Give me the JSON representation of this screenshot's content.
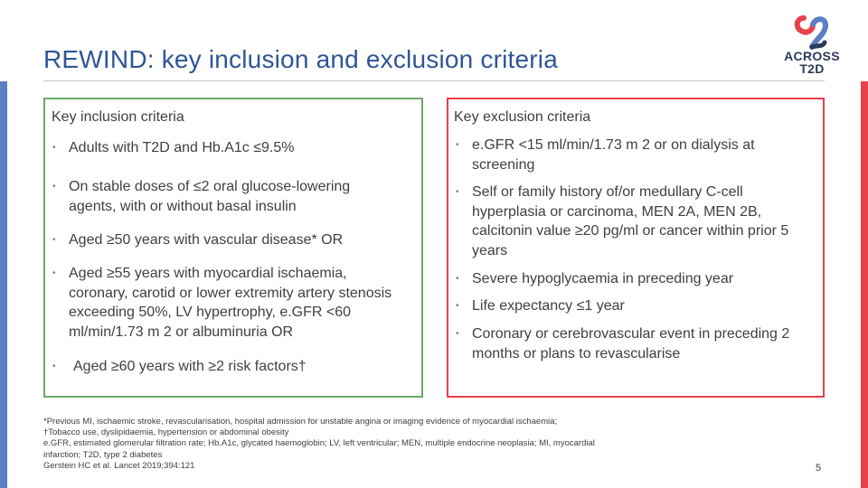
{
  "title": "REWIND: key inclusion and exclusion criteria",
  "logo": {
    "line1": "ACROSS",
    "line2": "T2D"
  },
  "colors": {
    "title": "#2f5597",
    "inclusion_border": "#6aa86a",
    "exclusion_border": "#e8414b",
    "left_bar": "#5a7fc2",
    "right_bar": "#e8414b"
  },
  "inclusion": {
    "heading": "Key inclusion criteria",
    "items": [
      "Adults with T2D and Hb.A1c ≤9.5%",
      "On stable doses of ≤2 oral glucose-lowering agents, with or without basal insulin",
      "Aged ≥50 years with vascular disease* OR",
      "Aged ≥55 years with myocardial ischaemia, coronary, carotid or lower extremity artery stenosis exceeding 50%, LV hypertrophy, e.GFR <60 ml/min/1.73 m 2 or albuminuria OR",
      "Aged ≥60 years with ≥2 risk factors†"
    ]
  },
  "exclusion": {
    "heading": "Key exclusion criteria",
    "items": [
      "e.GFR <15 ml/min/1.73 m 2 or on dialysis at screening",
      "Self or family history of/or medullary C-cell hyperplasia or carcinoma, MEN 2A, MEN 2B, calcitonin value ≥20 pg/ml or cancer within prior 5 years",
      "Severe hypoglycaemia in preceding year",
      "Life expectancy ≤1 year",
      "Coronary or cerebrovascular event in preceding 2 months or plans to revascularise"
    ]
  },
  "footnotes": [
    "*Previous MI, ischaemic stroke, revascularisation, hospital admission for unstable angina or imaging evidence of myocardial ischaemia;",
    "†Tobacco use, dyslipidaemia, hypertension or abdominal obesity",
    "e.GFR, estimated glomerular filtration rate; Hb.A1c, glycated haemoglobin; LV, left ventricular; MEN, multiple endocrine neoplasia; MI, myocardial",
    "infarction; T2D, type 2 diabetes",
    "Gerstein HC et al. Lancet 2019;394:121"
  ],
  "page_number": "5",
  "bullet": "•"
}
